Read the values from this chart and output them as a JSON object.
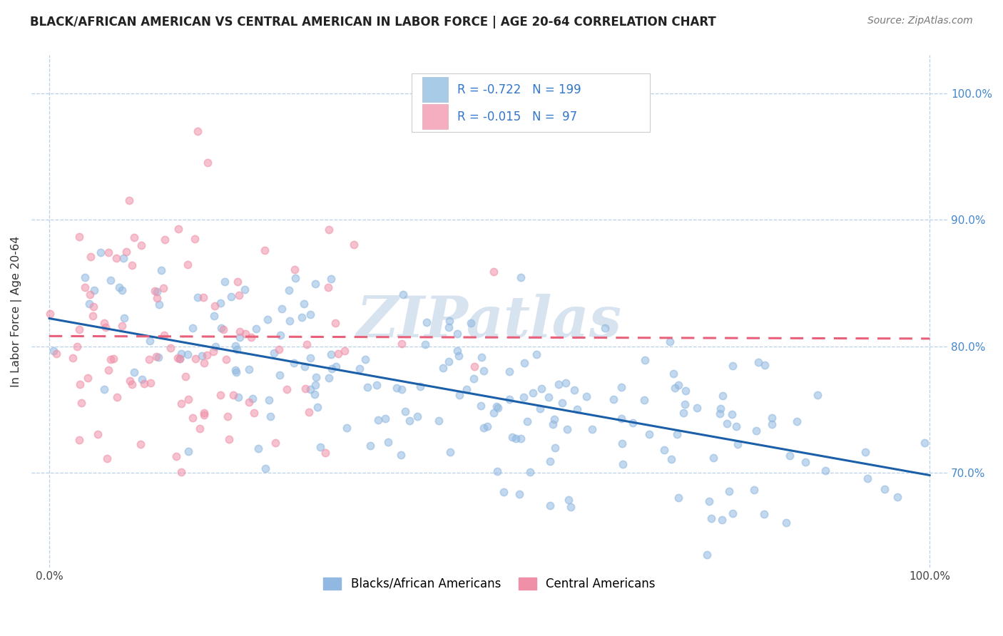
{
  "title": "BLACK/AFRICAN AMERICAN VS CENTRAL AMERICAN IN LABOR FORCE | AGE 20-64 CORRELATION CHART",
  "source": "Source: ZipAtlas.com",
  "ylabel": "In Labor Force | Age 20-64",
  "xlim": [
    -0.02,
    1.02
  ],
  "ylim": [
    0.625,
    1.03
  ],
  "blue_R": -0.722,
  "blue_N": 199,
  "pink_R": -0.015,
  "pink_N": 97,
  "blue_legend_color": "#a8cce8",
  "pink_legend_color": "#f4aec0",
  "blue_line_color": "#1a5fa8",
  "pink_line_color": "#e8607a",
  "blue_scatter_color": "#90b8e0",
  "pink_scatter_color": "#f090a8",
  "background_color": "#ffffff",
  "grid_color": "#b8d0e8",
  "watermark_text": "ZIPatlas",
  "watermark_color": "#c8d8ea",
  "ytick_labels": [
    "70.0%",
    "80.0%",
    "90.0%",
    "100.0%"
  ],
  "ytick_values": [
    0.7,
    0.8,
    0.9,
    1.0
  ],
  "xtick_labels": [
    "0.0%",
    "100.0%"
  ],
  "xtick_values": [
    0.0,
    1.0
  ],
  "legend_label_blue": "Blacks/African Americans",
  "legend_label_pink": "Central Americans",
  "blue_trend_x": [
    0.0,
    1.0
  ],
  "blue_trend_y": [
    0.822,
    0.698
  ],
  "pink_trend_x": [
    0.0,
    1.0
  ],
  "pink_trend_y": [
    0.808,
    0.806
  ],
  "title_fontsize": 12,
  "source_fontsize": 10,
  "tick_fontsize": 11
}
